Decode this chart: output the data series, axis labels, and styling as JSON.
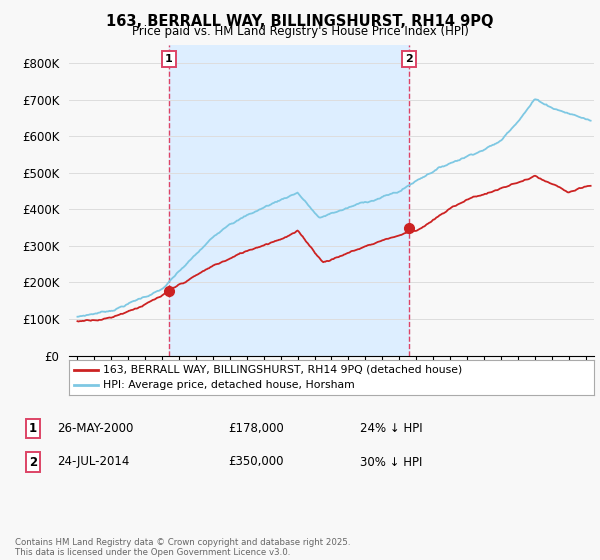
{
  "title1": "163, BERRALL WAY, BILLINGSHURST, RH14 9PQ",
  "title2": "Price paid vs. HM Land Registry's House Price Index (HPI)",
  "ylim": [
    0,
    850000
  ],
  "yticks": [
    0,
    100000,
    200000,
    300000,
    400000,
    500000,
    600000,
    700000,
    800000
  ],
  "ytick_labels": [
    "£0",
    "£100K",
    "£200K",
    "£300K",
    "£400K",
    "£500K",
    "£600K",
    "£700K",
    "£800K"
  ],
  "hpi_color": "#7ec8e3",
  "price_color": "#cc2222",
  "vline_color": "#dd4466",
  "grid_color": "#dddddd",
  "shade_color": "#ddeeff",
  "bg_color": "#f8f8f8",
  "plot_bg": "#f8f8f8",
  "purchase1_year": 2000.38,
  "purchase1_price": 178000,
  "purchase2_year": 2014.55,
  "purchase2_price": 350000,
  "legend_line1": "163, BERRALL WAY, BILLINGSHURST, RH14 9PQ (detached house)",
  "legend_line2": "HPI: Average price, detached house, Horsham",
  "table_row1": [
    "1",
    "26-MAY-2000",
    "£178,000",
    "24% ↓ HPI"
  ],
  "table_row2": [
    "2",
    "24-JUL-2014",
    "£350,000",
    "30% ↓ HPI"
  ],
  "footnote": "Contains HM Land Registry data © Crown copyright and database right 2025.\nThis data is licensed under the Open Government Licence v3.0.",
  "xmin": 1994.5,
  "xmax": 2025.5
}
